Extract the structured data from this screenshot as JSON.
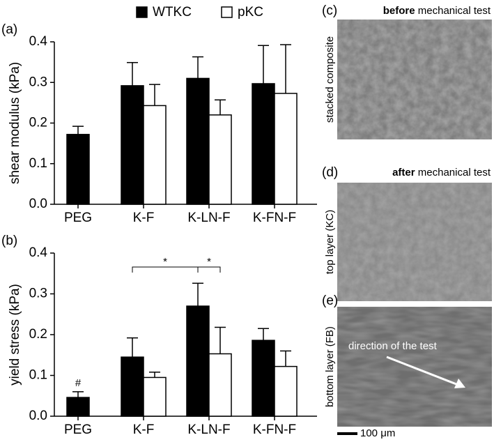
{
  "chart_data": [
    {
      "type": "bar",
      "panel": "(a)",
      "y_label": "shear modulus (kPa)",
      "categories": [
        "PEG",
        "K-F",
        "K-LN-F",
        "K-FN-F"
      ],
      "series": [
        {
          "name": "WTKC",
          "color": "#000000",
          "values": [
            0.172,
            0.292,
            0.31,
            0.297
          ],
          "errors": [
            0.02,
            0.057,
            0.053,
            0.094
          ]
        },
        {
          "name": "pKC",
          "color": "#ffffff",
          "values": [
            null,
            0.243,
            0.22,
            0.273
          ],
          "errors": [
            null,
            0.052,
            0.037,
            0.12
          ]
        }
      ],
      "ylim": [
        0,
        0.4
      ],
      "yticks": [
        {
          "value": 0,
          "label": "0.0"
        },
        0.1,
        0.2,
        0.3,
        0.4
      ],
      "legend": "top"
    },
    {
      "type": "bar",
      "panel": "(b)",
      "y_label": "yield stress (kPa)",
      "categories": [
        "PEG",
        "K-F",
        "K-LN-F",
        "K-FN-F"
      ],
      "series": [
        {
          "name": "WTKC",
          "color": "#000000",
          "values": [
            0.046,
            0.145,
            0.27,
            0.186
          ],
          "errors": [
            0.014,
            0.047,
            0.056,
            0.029
          ]
        },
        {
          "name": "pKC",
          "color": "#ffffff",
          "values": [
            null,
            0.095,
            0.153,
            0.122
          ],
          "errors": [
            null,
            0.013,
            0.065,
            0.038
          ]
        }
      ],
      "ylim": [
        0,
        0.4
      ],
      "yticks": [
        {
          "value": 0,
          "label": "0.0"
        },
        0.1,
        0.2,
        0.3,
        0.4
      ],
      "annotations": [
        "#",
        "*",
        "*"
      ]
    }
  ],
  "panels": [
    {
      "label": "(c)",
      "title_bold": "before",
      "title": "mechanical test",
      "side": "stacked composite"
    },
    {
      "label": "(d)",
      "title_bold": "after",
      "title": "mechanical test",
      "side": "top layer (KC)"
    },
    {
      "label": "(e)",
      "side": "bottom layer (FB)",
      "arrow_text": "direction of the test"
    }
  ],
  "scale_bar": "100 μm"
}
